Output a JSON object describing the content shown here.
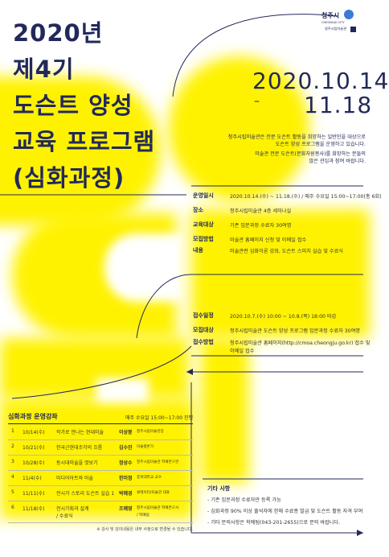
{
  "colors": {
    "yellow": "#fff200",
    "navy": "#22295a"
  },
  "logo": {
    "name": "청주시",
    "sub": "CHEONGJU CITY",
    "museum": "청주시립미술관"
  },
  "title": [
    "2020년",
    "제4기",
    "도슨트 양성",
    "교육 프로그램",
    "(심화과정)"
  ],
  "dates": {
    "start": "2020.10.14",
    "dash": "–",
    "end": "11.18"
  },
  "intro": [
    "청주시립미술관은 전문 도슨트 활동을 희망하는 일반인을 대상으로",
    "도슨트 양성 프로그램을 운영하고 있습니다.",
    "미술관 전문 도슨트(문화자원봉사)를 희망하는 분들의",
    "많은 관심과 참여 바랍니다."
  ],
  "info1": [
    {
      "label": "운영일시",
      "value": "2020.10.14.(수) ~ 11.18.(수) / 매주 수요일 15:00~17:00(총 6회)"
    },
    {
      "label": "장소",
      "value": "청주시립미술관 4층 세미나실"
    },
    {
      "label": "교육대상",
      "value": "기존 입문과정 수료자 30여명"
    },
    {
      "label": "모집방법",
      "value": "미술관 홈페이지 신청 및 이메일 접수"
    },
    {
      "label": "내용",
      "value": "미술관련 심화이론 강좌, 도슨트 스피치 실습 및 수료식"
    }
  ],
  "info2": [
    {
      "label": "접수일정",
      "value": "2020.10.7.(수) 10:00 ~ 10.8.(목) 18:00 마감"
    },
    {
      "label": "모집대상",
      "value": "청주시립미술관 도슨트 양성 프로그램 입문과정 수료자 30여명"
    },
    {
      "label": "접수방법",
      "value": "청주시립미술관 홈페이지(http://cmoa.cheongju.go.kr) 접수 및"
    },
    {
      "label": "",
      "value": "이메일 접수"
    }
  ],
  "schedule": {
    "heading": "심화과정 운영강좌",
    "time": "매주 수요일 15:00~17:00 진행",
    "rows": [
      {
        "no": "1",
        "date": "10/14(수)",
        "title": "작가로 만나는 현대미술",
        "speaker": "이상봉",
        "org": "청주시립미술관장"
      },
      {
        "no": "2",
        "date": "10/21(수)",
        "title": "한국근현대조각의 흐름",
        "speaker": "김수진",
        "org": "미술평론가"
      },
      {
        "no": "3",
        "date": "10/28(수)",
        "title": "동시대미술을 엿보기",
        "speaker": "정상수",
        "org": "청주시립미술관 학예연구관"
      },
      {
        "no": "4",
        "date": "11/4(수)",
        "title": "미디어아트와 미술",
        "speaker": "한미정",
        "org": "충북대학교 교수"
      },
      {
        "no": "5",
        "date": "11/11(수)",
        "title": "전시가 스토리 도슨트 실습 1",
        "speaker": "박혜경",
        "org": "큐레이터/미술관 대표"
      },
      {
        "no": "6",
        "date": "11/18(수)",
        "title": "전시기획과 설계",
        "title2": "/ 수료식",
        "speaker": "조혜영",
        "org": "청주시립미술관 학예연구사",
        "org2": "/ 학예팀"
      }
    ],
    "footnote": "※ 강사 및 강의내용은 내부 사정으로 변경될 수 있습니다."
  },
  "notes": {
    "heading": "기타 사항",
    "items": [
      "- 기존 입문과정 수료자만 등록 가능",
      "- 심화과정 90% 이상 출석자에 한해 수료증 발급 및 도슨트 활동 자격 부여",
      "- 기타 문의사항은 학예팀(043-201-2655)으로 문의 바랍니다."
    ]
  }
}
